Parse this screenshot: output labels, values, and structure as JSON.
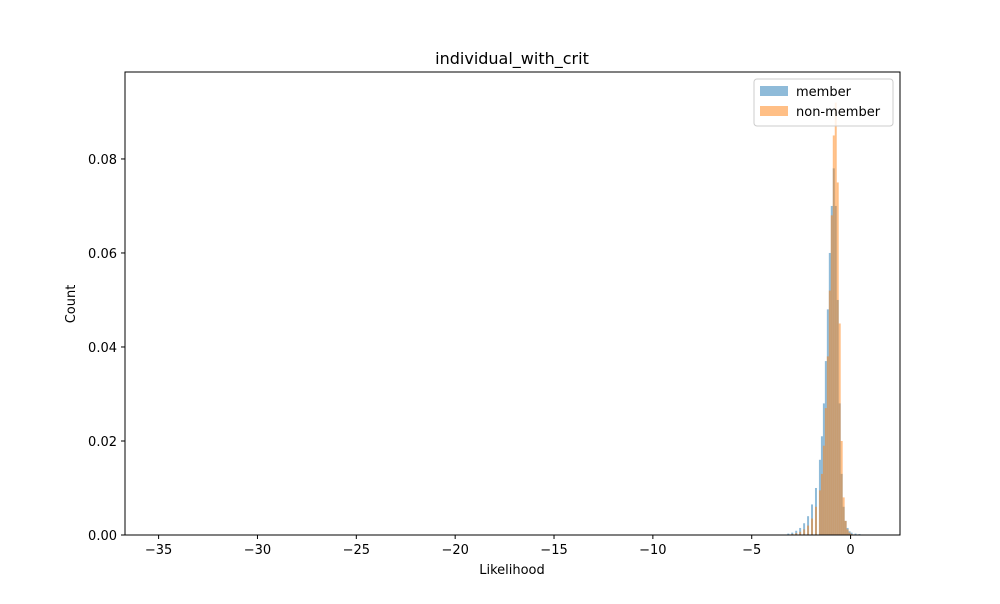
{
  "chart_data": {
    "type": "histogram",
    "title": "individual_with_crit",
    "xlabel": "Likelihood",
    "ylabel": "Count",
    "xlim": [
      -36.7,
      2.5
    ],
    "ylim": [
      0,
      0.0985
    ],
    "xticks": [
      -35,
      -30,
      -25,
      -20,
      -15,
      -10,
      -5,
      0
    ],
    "xtick_labels": [
      "−35",
      "−30",
      "−25",
      "−20",
      "−15",
      "−10",
      "−5",
      "0"
    ],
    "yticks": [
      0.0,
      0.02,
      0.04,
      0.06,
      0.08
    ],
    "ytick_labels": [
      "0.00",
      "0.02",
      "0.04",
      "0.06",
      "0.08"
    ],
    "grid": false,
    "legend_position": "top-right",
    "bin_width": 0.1,
    "series": [
      {
        "name": "member",
        "color": "#1f77b4",
        "alpha": 0.5,
        "bin_starts": [
          -35.0,
          -3.2,
          -3.0,
          -2.8,
          -2.6,
          -2.4,
          -2.2,
          -2.0,
          -1.8,
          -1.6,
          -1.5,
          -1.4,
          -1.3,
          -1.2,
          -1.1,
          -1.0,
          -0.9,
          -0.8,
          -0.7,
          -0.6,
          -0.5,
          -0.4,
          -0.3,
          -0.2,
          -0.1,
          0.0,
          0.2,
          0.4
        ],
        "values": [
          0.0001,
          0.0003,
          0.0005,
          0.0009,
          0.0015,
          0.0025,
          0.004,
          0.0065,
          0.01,
          0.016,
          0.021,
          0.028,
          0.037,
          0.048,
          0.06,
          0.07,
          0.078,
          0.07,
          0.05,
          0.028,
          0.013,
          0.006,
          0.003,
          0.0015,
          0.0008,
          0.0005,
          0.0003,
          0.0002
        ]
      },
      {
        "name": "non-member",
        "color": "#ff7f0e",
        "alpha": 0.5,
        "bin_starts": [
          -3.0,
          -2.8,
          -2.6,
          -2.4,
          -2.2,
          -2.0,
          -1.8,
          -1.6,
          -1.5,
          -1.4,
          -1.3,
          -1.2,
          -1.1,
          -1.0,
          -0.9,
          -0.8,
          -0.7,
          -0.6,
          -0.5,
          -0.4,
          -0.3,
          -0.2,
          -0.1,
          0.0
        ],
        "values": [
          0.0002,
          0.0004,
          0.0007,
          0.0012,
          0.002,
          0.0035,
          0.006,
          0.0095,
          0.013,
          0.019,
          0.027,
          0.038,
          0.052,
          0.068,
          0.085,
          0.092,
          0.075,
          0.045,
          0.02,
          0.008,
          0.003,
          0.0012,
          0.0005,
          0.0002
        ]
      }
    ]
  }
}
